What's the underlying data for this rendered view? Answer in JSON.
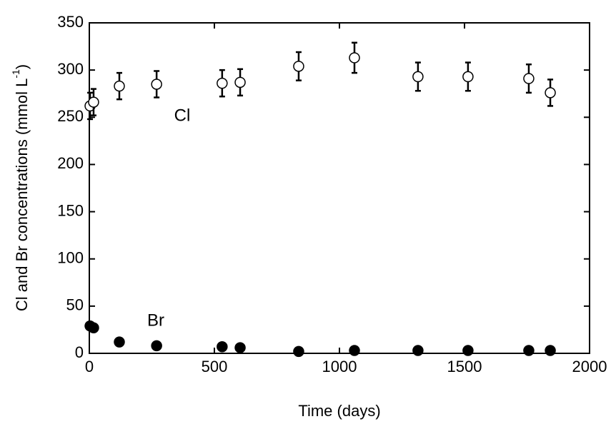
{
  "chart_data": {
    "type": "scatter",
    "xlabel": "Time (days)",
    "ylabel": {
      "text": "Cl and Br concentrations (mmol L",
      "superscript": "-1",
      "close": ")"
    },
    "xlim": [
      0,
      2000
    ],
    "xticks": [
      0,
      500,
      1000,
      1500,
      2000
    ],
    "ylim": [
      0,
      350
    ],
    "yticks": [
      0,
      50,
      100,
      150,
      200,
      250,
      300,
      350
    ],
    "series": [
      {
        "name": "Cl",
        "color": "#000000",
        "filled": false,
        "x": [
          3,
          17,
          120,
          269,
          531,
          603,
          837,
          1060,
          1314,
          1514,
          1757,
          1843
        ],
        "values": [
          262,
          266,
          283,
          285,
          286,
          287,
          304,
          313,
          293,
          293,
          291,
          276
        ],
        "errors": [
          14,
          14,
          14,
          14,
          14,
          14,
          15,
          16,
          15,
          15,
          15,
          14
        ]
      },
      {
        "name": "Br",
        "color": "#000000",
        "filled": true,
        "x": [
          3,
          17,
          120,
          269,
          531,
          603,
          837,
          1060,
          1314,
          1514,
          1757,
          1843
        ],
        "values": [
          29,
          27,
          12,
          8,
          7,
          6,
          2,
          3,
          3,
          3,
          3,
          3
        ]
      }
    ],
    "annotations": [
      "Cl",
      "Br"
    ]
  }
}
